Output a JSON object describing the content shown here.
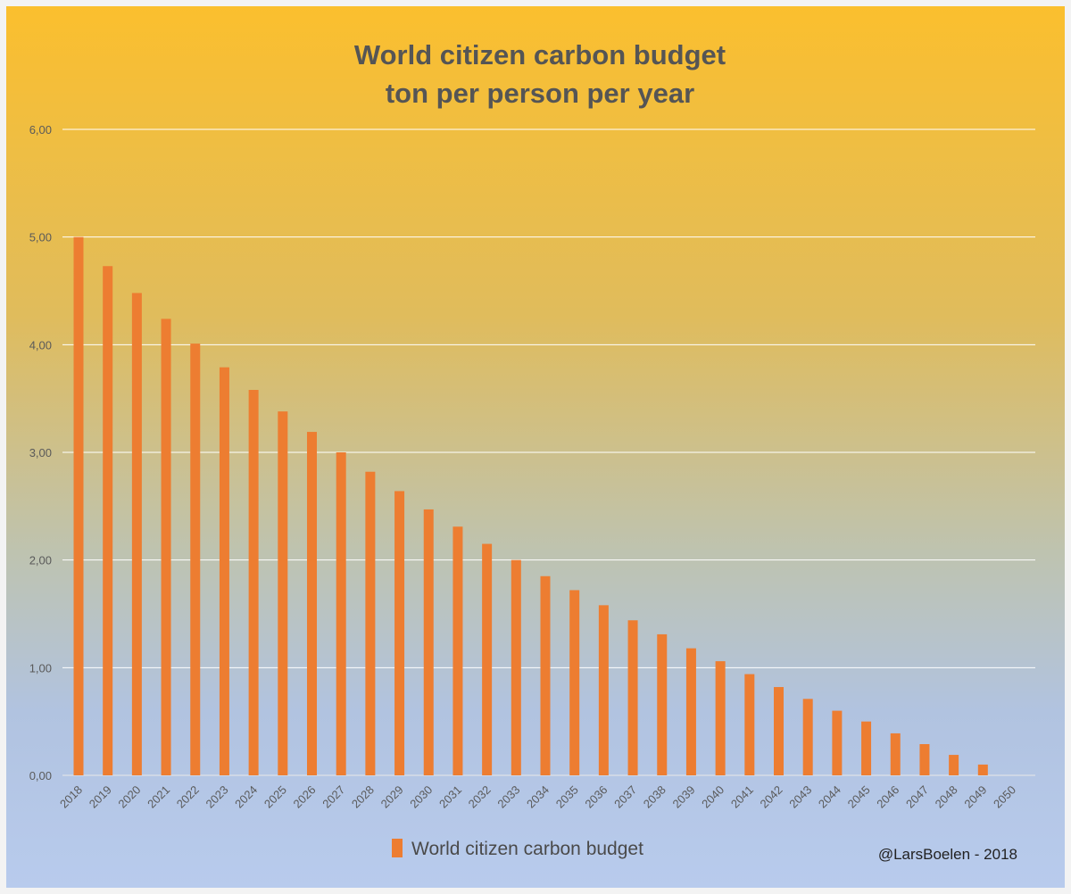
{
  "chart_data": {
    "type": "bar",
    "title_lines": [
      "World citizen carbon budget",
      "ton per person per year"
    ],
    "xlabel": "",
    "ylabel": "",
    "categories": [
      "2018",
      "2019",
      "2020",
      "2021",
      "2022",
      "2023",
      "2024",
      "2025",
      "2026",
      "2027",
      "2028",
      "2029",
      "2030",
      "2031",
      "2032",
      "2033",
      "2034",
      "2035",
      "2036",
      "2037",
      "2038",
      "2039",
      "2040",
      "2041",
      "2042",
      "2043",
      "2044",
      "2045",
      "2046",
      "2047",
      "2048",
      "2049",
      "2050"
    ],
    "series": [
      {
        "name": "World citizen carbon budget",
        "color": "#ed7d31",
        "values": [
          5.0,
          4.73,
          4.48,
          4.24,
          4.01,
          3.79,
          3.58,
          3.38,
          3.19,
          3.0,
          2.82,
          2.64,
          2.47,
          2.31,
          2.15,
          2.0,
          1.85,
          1.72,
          1.58,
          1.44,
          1.31,
          1.18,
          1.06,
          0.94,
          0.82,
          0.71,
          0.6,
          0.5,
          0.39,
          0.29,
          0.19,
          0.1,
          0.0
        ]
      }
    ],
    "ylim": [
      0,
      6
    ],
    "yticks": [
      "0,00",
      "1,00",
      "2,00",
      "3,00",
      "4,00",
      "5,00",
      "6,00"
    ],
    "grid": true,
    "legend_position": "bottom"
  },
  "credit": "@LarsBoelen - 2018",
  "colors": {
    "background_top": "#fbbf2e",
    "background_bottom": "#b4c8ea",
    "bar": "#ed7d31",
    "gridline": "#ffffff",
    "title": "#555555"
  }
}
